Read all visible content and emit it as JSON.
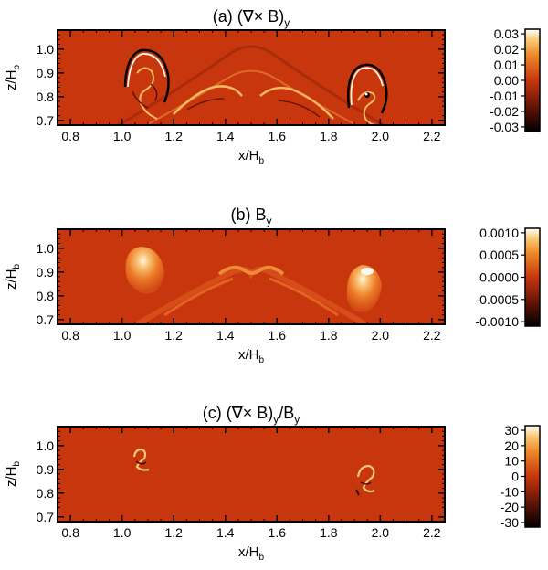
{
  "chart_data": [
    {
      "type": "heatmap",
      "title": "(a) (∇× B)",
      "title_sub": "y",
      "xlabel": "x/H",
      "xlabel_sub": "b",
      "ylabel": "z/H",
      "ylabel_sub": "b",
      "xlim": [
        0.75,
        2.25
      ],
      "ylim": [
        0.68,
        1.08
      ],
      "xticks": [
        "0.8",
        "1.0",
        "1.2",
        "1.4",
        "1.6",
        "1.8",
        "2.0",
        "2.2"
      ],
      "yticks": [
        "0.7",
        "0.8",
        "0.9",
        "1.0"
      ],
      "colorbar": {
        "range": [
          -0.033,
          0.033
        ],
        "ticks": [
          "0.03",
          "0.02",
          "0.01",
          "0.00",
          "-0.01",
          "-0.02",
          "-0.03"
        ],
        "tick_values": [
          0.03,
          0.02,
          0.01,
          0.0,
          -0.01,
          -0.02,
          -0.03
        ]
      }
    },
    {
      "type": "heatmap",
      "title": "(b) B",
      "title_sub": "y",
      "xlabel": "x/H",
      "xlabel_sub": "b",
      "ylabel": "z/H",
      "ylabel_sub": "b",
      "xlim": [
        0.75,
        2.25
      ],
      "ylim": [
        0.68,
        1.08
      ],
      "xticks": [
        "0.8",
        "1.0",
        "1.2",
        "1.4",
        "1.6",
        "1.8",
        "2.0",
        "2.2"
      ],
      "yticks": [
        "0.7",
        "0.8",
        "0.9",
        "1.0"
      ],
      "colorbar": {
        "range": [
          -0.0011,
          0.0011
        ],
        "ticks": [
          "0.0010",
          "0.0005",
          "0.0000",
          "-0.0005",
          "-0.0010"
        ],
        "tick_values": [
          0.001,
          0.0005,
          0.0,
          -0.0005,
          -0.001
        ]
      }
    },
    {
      "type": "heatmap",
      "title": "(c) (∇× B)",
      "title_sub": "y",
      "title_suffix": "/B",
      "title_suffix_sub": "y",
      "xlabel": "x/H",
      "xlabel_sub": "b",
      "ylabel": "z/H",
      "ylabel_sub": "b",
      "xlim": [
        0.75,
        2.25
      ],
      "ylim": [
        0.68,
        1.08
      ],
      "xticks": [
        "0.8",
        "1.0",
        "1.2",
        "1.4",
        "1.6",
        "1.8",
        "2.0",
        "2.2"
      ],
      "yticks": [
        "0.7",
        "0.8",
        "0.9",
        "1.0"
      ],
      "colorbar": {
        "range": [
          -33,
          33
        ],
        "ticks": [
          "30",
          "20",
          "10",
          "0",
          "-10",
          "-20",
          "-30"
        ],
        "tick_values": [
          30,
          20,
          10,
          0,
          -10,
          -20,
          -30
        ]
      }
    }
  ],
  "colors": {
    "background_field": "#c8360e",
    "cmap_low": "#000000",
    "cmap_mid": "#c8360e",
    "cmap_high": "#ffffff"
  }
}
